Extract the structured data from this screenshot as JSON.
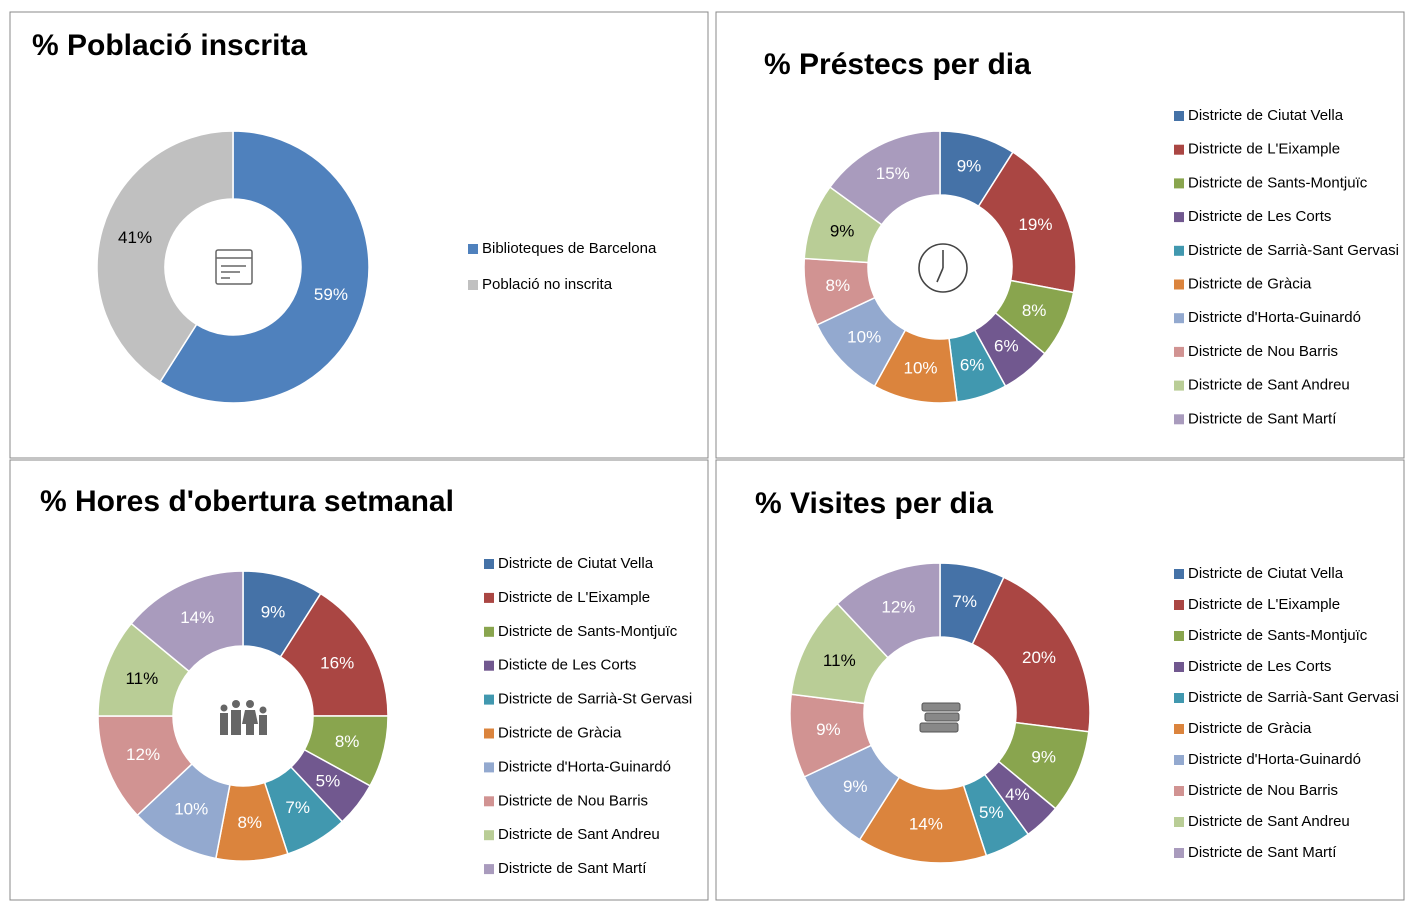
{
  "chart_data": [
    {
      "type": "donut",
      "title": "% Població inscrita",
      "categories": [
        "Biblioteques de Barcelona",
        "Població no inscrita"
      ],
      "values": [
        59,
        41
      ],
      "value_labels": [
        "59%",
        "41%"
      ],
      "colors": [
        "#4f81bd",
        "#c0c0c0"
      ]
    },
    {
      "type": "donut",
      "title": "% Préstecs per dia",
      "categories": [
        "Districte de Ciutat Vella",
        "Districte de L'Eixample",
        "Districte de Sants-Montjuïc",
        "Districte de Les Corts",
        "Districte de Sarrià-Sant Gervasi",
        "Districte de Gràcia",
        "Districte d'Horta-Guinardó",
        "Districte de Nou Barris",
        "Districte de Sant Andreu",
        "Districte de Sant Martí"
      ],
      "values": [
        9,
        19,
        8,
        6,
        6,
        10,
        10,
        8,
        9,
        15
      ],
      "value_labels": [
        "9%",
        "19%",
        "8%",
        "6%",
        "6%",
        "10%",
        "10%",
        "8%",
        "9%",
        "15%"
      ],
      "colors": [
        "#4572a7",
        "#aa4643",
        "#89a54e",
        "#71588f",
        "#4198af",
        "#db843d",
        "#93a9cf",
        "#d19392",
        "#b9cd96",
        "#a99bbd"
      ]
    },
    {
      "type": "donut",
      "title": "% Hores d'obertura setmanal",
      "categories": [
        "Districte de Ciutat Vella",
        "Districte de L'Eixample",
        "Districte de Sants-Montjuïc",
        "Disticte de Les Corts",
        "Districte de Sarrià-St Gervasi",
        "Districte de Gràcia",
        "Districte d'Horta-Guinardó",
        "Districte de Nou Barris",
        "Districte de Sant Andreu",
        "Districte de Sant Martí"
      ],
      "values": [
        9,
        16,
        8,
        5,
        7,
        8,
        10,
        12,
        11,
        14
      ],
      "value_labels": [
        "9%",
        "16%",
        "8%",
        "5%",
        "7%",
        "8%",
        "10%",
        "12%",
        "11%",
        "14%"
      ],
      "colors": [
        "#4572a7",
        "#aa4643",
        "#89a54e",
        "#71588f",
        "#4198af",
        "#db843d",
        "#93a9cf",
        "#d19392",
        "#b9cd96",
        "#a99bbd"
      ]
    },
    {
      "type": "donut",
      "title": "% Visites per dia",
      "categories": [
        "Districte de Ciutat Vella",
        "Districte de L'Eixample",
        "Districte de Sants-Montjuïc",
        "Districte de Les Corts",
        "Districte de Sarrià-Sant Gervasi",
        "Districte de Gràcia",
        "Districte d'Horta-Guinardó",
        "Districte de Nou Barris",
        "Districte de Sant Andreu",
        "Districte de Sant Martí"
      ],
      "values": [
        7,
        20,
        9,
        4,
        5,
        14,
        9,
        9,
        11,
        12
      ],
      "value_labels": [
        "7%",
        "20%",
        "9%",
        "4%",
        "5%",
        "14%",
        "9%",
        "9%",
        "11%",
        "12%"
      ],
      "colors": [
        "#4572a7",
        "#aa4643",
        "#89a54e",
        "#71588f",
        "#4198af",
        "#db843d",
        "#93a9cf",
        "#d19392",
        "#b9cd96",
        "#a99bbd"
      ]
    }
  ]
}
